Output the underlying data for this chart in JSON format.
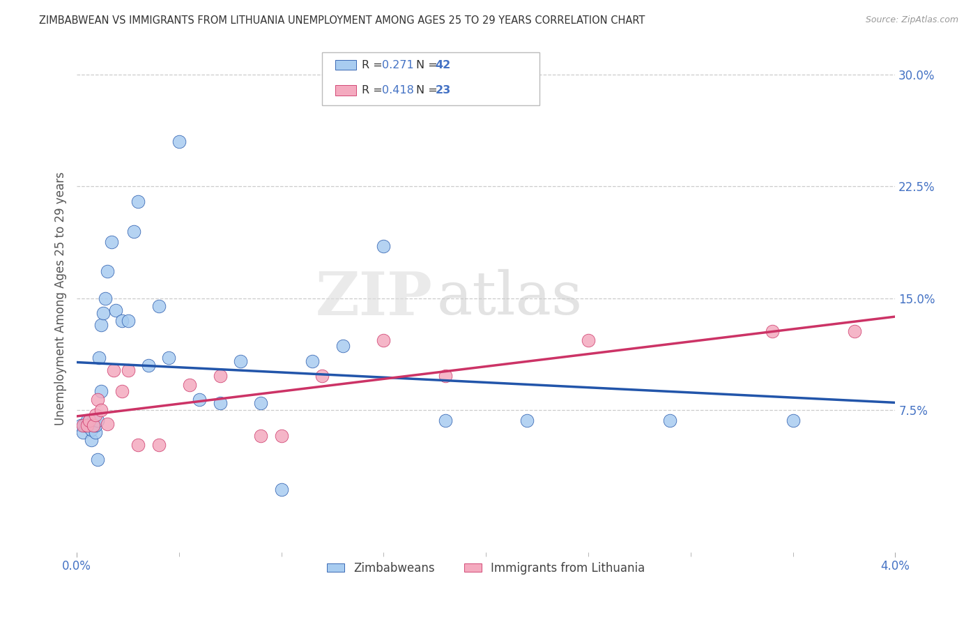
{
  "title": "ZIMBABWEAN VS IMMIGRANTS FROM LITHUANIA UNEMPLOYMENT AMONG AGES 25 TO 29 YEARS CORRELATION CHART",
  "source": "Source: ZipAtlas.com",
  "ylabel": "Unemployment Among Ages 25 to 29 years",
  "r_blue": 0.271,
  "n_blue": 42,
  "r_pink": 0.418,
  "n_pink": 23,
  "blue_color": "#A8CCF0",
  "pink_color": "#F4AABF",
  "blue_line_color": "#2255AA",
  "pink_line_color": "#CC3366",
  "xlim": [
    0.0,
    0.04
  ],
  "ylim": [
    -0.02,
    0.32
  ],
  "right_ytick_vals": [
    0.075,
    0.15,
    0.225,
    0.3
  ],
  "right_yticklabels": [
    "7.5%",
    "15.0%",
    "22.5%",
    "30.0%"
  ],
  "xtick_vals": [
    0.0,
    0.04
  ],
  "xtick_labels": [
    "0.0%",
    "4.0%"
  ],
  "watermark_zip": "ZIP",
  "watermark_atlas": "atlas",
  "blue_x": [
    0.0002,
    0.0003,
    0.0004,
    0.0005,
    0.0006,
    0.0006,
    0.0007,
    0.0007,
    0.0008,
    0.0008,
    0.0009,
    0.0009,
    0.001,
    0.001,
    0.0011,
    0.0012,
    0.0012,
    0.0013,
    0.0014,
    0.0015,
    0.0017,
    0.0019,
    0.0022,
    0.0025,
    0.0028,
    0.003,
    0.0035,
    0.004,
    0.0045,
    0.005,
    0.006,
    0.007,
    0.008,
    0.009,
    0.01,
    0.0115,
    0.013,
    0.015,
    0.018,
    0.022,
    0.029,
    0.035
  ],
  "blue_y": [
    0.065,
    0.06,
    0.065,
    0.068,
    0.065,
    0.068,
    0.055,
    0.062,
    0.065,
    0.068,
    0.06,
    0.065,
    0.042,
    0.068,
    0.11,
    0.088,
    0.132,
    0.14,
    0.15,
    0.168,
    0.188,
    0.142,
    0.135,
    0.135,
    0.195,
    0.215,
    0.105,
    0.145,
    0.11,
    0.255,
    0.082,
    0.08,
    0.108,
    0.08,
    0.022,
    0.108,
    0.118,
    0.185,
    0.068,
    0.068,
    0.068,
    0.068
  ],
  "pink_x": [
    0.0003,
    0.0005,
    0.0006,
    0.0008,
    0.0009,
    0.001,
    0.0012,
    0.0015,
    0.0018,
    0.0022,
    0.0025,
    0.003,
    0.004,
    0.0055,
    0.007,
    0.009,
    0.01,
    0.012,
    0.015,
    0.018,
    0.025,
    0.034,
    0.038
  ],
  "pink_y": [
    0.065,
    0.065,
    0.068,
    0.065,
    0.072,
    0.082,
    0.075,
    0.066,
    0.102,
    0.088,
    0.102,
    0.052,
    0.052,
    0.092,
    0.098,
    0.058,
    0.058,
    0.098,
    0.122,
    0.098,
    0.122,
    0.128,
    0.128
  ]
}
